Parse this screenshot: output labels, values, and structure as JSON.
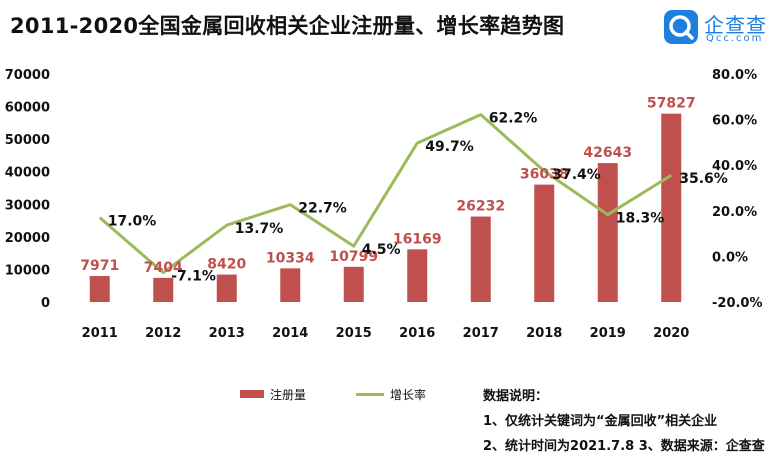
{
  "title": "2011-2020全国金属回收相关企业注册量、增长率趋势图",
  "logo": {
    "name": "企查查",
    "sub": "Qcc.com"
  },
  "chart_data": {
    "type": "bar",
    "categories": [
      "2011",
      "2012",
      "2013",
      "2014",
      "2015",
      "2016",
      "2017",
      "2018",
      "2019",
      "2020"
    ],
    "series": [
      {
        "name": "注册量",
        "type": "bar",
        "axis": "left",
        "color": "#c0504d",
        "values": [
          7971,
          7404,
          8420,
          10334,
          10799,
          16169,
          26232,
          36038,
          42643,
          57827
        ],
        "labels": [
          "7971",
          "7404",
          "8420",
          "10334",
          "10799",
          "16169",
          "26232",
          "36038",
          "42643",
          "57827"
        ]
      },
      {
        "name": "增长率",
        "type": "line",
        "axis": "right",
        "color": "#9bbb59",
        "values": [
          17.0,
          -7.1,
          13.7,
          22.7,
          4.5,
          49.7,
          62.2,
          37.4,
          18.3,
          35.6
        ],
        "labels": [
          "17.0%",
          "-7.1%",
          "13.7%",
          "22.7%",
          "4.5%",
          "49.7%",
          "62.2%",
          "37.4%",
          "18.3%",
          "35.6%"
        ]
      }
    ],
    "y_left": {
      "ylim": [
        0,
        70000
      ],
      "ticks": [
        "0",
        "10000",
        "20000",
        "30000",
        "40000",
        "50000",
        "60000",
        "70000"
      ]
    },
    "y_right": {
      "ylim": [
        -20,
        80
      ],
      "ticks": [
        "-20.0%",
        "0.0%",
        "20.0%",
        "40.0%",
        "60.0%",
        "80.0%"
      ]
    },
    "grid": false,
    "legend": "bottom"
  },
  "notes": {
    "heading": "数据说明：",
    "line1": "1、仅统计关键词为“金属回收”相关企业",
    "line2": "2、统计时间为2021.7.8 3、数据来源：企查查"
  }
}
